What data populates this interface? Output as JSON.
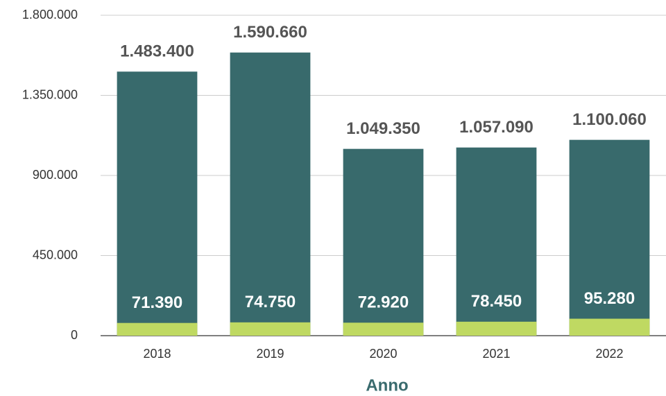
{
  "chart_data": {
    "type": "bar",
    "overlap": true,
    "x_label": "Anno",
    "categories": [
      "2018",
      "2019",
      "2020",
      "2021",
      "2022"
    ],
    "series": [
      {
        "color": "#386a6c",
        "label_color": "#555555",
        "values": [
          1483400,
          1590660,
          1049350,
          1057090,
          1100060
        ],
        "value_labels": [
          "1.483.400",
          "1.590.660",
          "1.049.350",
          "1.057.090",
          "1.100.060"
        ]
      },
      {
        "color": "#bfd962",
        "label_color": "#ffffff",
        "values": [
          71390,
          74750,
          72920,
          78450,
          95280
        ],
        "value_labels": [
          "71.390",
          "74.750",
          "72.920",
          "78.450",
          "95.280"
        ]
      }
    ],
    "ylim": [
      0,
      1800000
    ],
    "yticks": [
      0,
      {
        "value": 450000,
        "label": "450.000"
      },
      {
        "value": 900000,
        "label": "900.000"
      },
      {
        "value": 1350000,
        "label": "1.350.000"
      },
      {
        "value": 1800000,
        "label": "1.800.000"
      }
    ],
    "grid": true
  }
}
